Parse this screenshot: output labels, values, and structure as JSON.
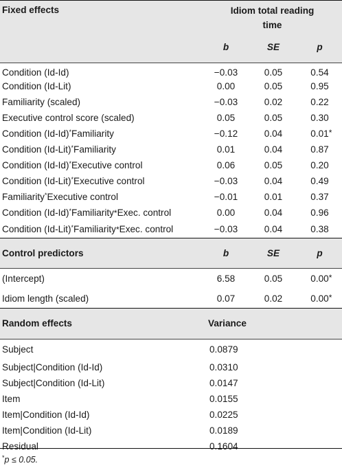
{
  "fixed": {
    "section_title": "Fixed effects",
    "group_header_line1": "Idiom total reading",
    "group_header_line2": "time",
    "col_b": "b",
    "col_se": "SE",
    "col_p": "p",
    "rows": [
      {
        "label": "Condition (Id-Id)",
        "b": "−0.03",
        "se": "0.05",
        "p": "0.54"
      },
      {
        "label": "Condition (Id-Lit)",
        "b": "0.00",
        "se": "0.05",
        "p": "0.95"
      },
      {
        "label": "Familiarity (scaled)",
        "b": "−0.03",
        "se": "0.02",
        "p": "0.22"
      },
      {
        "label": "Executive control score (scaled)",
        "b": "0.05",
        "se": "0.05",
        "p": "0.30"
      },
      {
        "label_a": "Condition (Id-Id)",
        "label_b": "Familiarity",
        "b": "−0.12",
        "se": "0.04",
        "p": "0.01",
        "p_mark": "*"
      },
      {
        "label_a": "Condition (Id-Lit)",
        "label_b": "Familiarity",
        "b": "0.01",
        "se": "0.04",
        "p": "0.87"
      },
      {
        "label_a": "Condition (Id-Id)",
        "label_b": "Executive control",
        "b": "0.06",
        "se": "0.05",
        "p": "0.20"
      },
      {
        "label_a": "Condition (Id-Lit)",
        "label_b": "Executive control",
        "b": "−0.03",
        "se": "0.04",
        "p": "0.49"
      },
      {
        "label_a": "Familiarity",
        "label_b": "Executive control",
        "b": "−0.01",
        "se": "0.01",
        "p": "0.37"
      },
      {
        "label_a": "Condition (Id-Id)",
        "label_b": "Familiarity",
        "label_c": "Exec. control",
        "b": "0.00",
        "se": "0.04",
        "p": "0.96"
      },
      {
        "label_a": "Condition (Id-Lit)",
        "label_b": "Familiarity",
        "label_c": "Exec. control",
        "b": "−0.03",
        "se": "0.04",
        "p": "0.38"
      }
    ]
  },
  "control": {
    "section_title": "Control predictors",
    "col_b": "b",
    "col_se": "SE",
    "col_p": "p",
    "rows": [
      {
        "label": "(Intercept)",
        "b": "6.58",
        "se": "0.05",
        "p": "0.00",
        "p_mark": "*"
      },
      {
        "label": "Idiom length (scaled)",
        "b": "0.07",
        "se": "0.02",
        "p": "0.00",
        "p_mark": "*"
      }
    ]
  },
  "random": {
    "section_title": "Random effects",
    "col_variance": "Variance",
    "rows": [
      {
        "label": "Subject",
        "variance": "0.0879"
      },
      {
        "label": "Subject|Condition (Id-Id)",
        "variance": "0.0310"
      },
      {
        "label": "Subject|Condition (Id-Lit)",
        "variance": "0.0147"
      },
      {
        "label": "Item",
        "variance": "0.0155"
      },
      {
        "label": "Item|Condition (Id-Id)",
        "variance": "0.0225"
      },
      {
        "label": "Item|Condition (Id-Lit)",
        "variance": "0.0189"
      },
      {
        "label": "Residual",
        "variance": "0.1604"
      }
    ]
  },
  "asterisk": "*",
  "footnote": {
    "mark": "*",
    "text": "p ≤ 0.05."
  }
}
